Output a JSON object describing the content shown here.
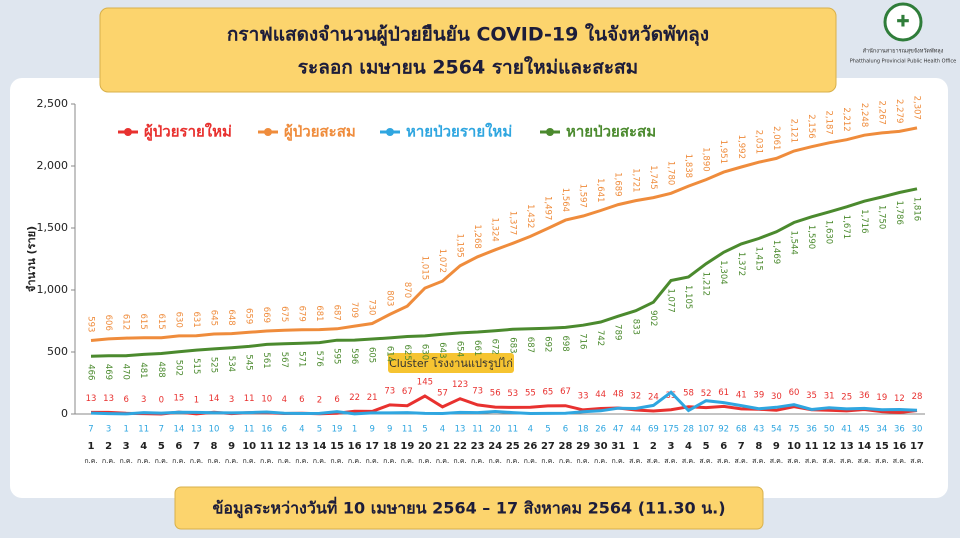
{
  "organization": {
    "name_th": "สำนักงานสาธารณสุขจังหวัดพัทลุง",
    "name_en": "Phatthalung Provincial Public Health Office"
  },
  "chart_data": {
    "type": "line",
    "title": [
      "กราฟแสดงจำนวนผู้ป่วยยืนยัน COVID-19 ในจังหวัดพัทลุง",
      "ระลอก เมษายน 2564 รายใหม่และสะสม"
    ],
    "y_label": "จำนวน (ราย)",
    "annotation": "Cluster โรงงานแปรรูปไก่",
    "note": "ข้อมูลระหว่างวันที่ 10 เมษายน 2564 – 17 สิงหาคม 2564 (11.30 น.)",
    "categories": [
      {
        "day": "1",
        "month": "ก.ค."
      },
      {
        "day": "2",
        "month": "ก.ค."
      },
      {
        "day": "3",
        "month": "ก.ค."
      },
      {
        "day": "4",
        "month": "ก.ค."
      },
      {
        "day": "5",
        "month": "ก.ค."
      },
      {
        "day": "6",
        "month": "ก.ค."
      },
      {
        "day": "7",
        "month": "ก.ค."
      },
      {
        "day": "8",
        "month": "ก.ค."
      },
      {
        "day": "9",
        "month": "ก.ค."
      },
      {
        "day": "10",
        "month": "ก.ค."
      },
      {
        "day": "11",
        "month": "ก.ค."
      },
      {
        "day": "12",
        "month": "ก.ค."
      },
      {
        "day": "13",
        "month": "ก.ค."
      },
      {
        "day": "14",
        "month": "ก.ค."
      },
      {
        "day": "15",
        "month": "ก.ค."
      },
      {
        "day": "16",
        "month": "ก.ค."
      },
      {
        "day": "17",
        "month": "ก.ค."
      },
      {
        "day": "18",
        "month": "ก.ค."
      },
      {
        "day": "19",
        "month": "ก.ค."
      },
      {
        "day": "20",
        "month": "ก.ค."
      },
      {
        "day": "21",
        "month": "ก.ค."
      },
      {
        "day": "22",
        "month": "ก.ค."
      },
      {
        "day": "23",
        "month": "ก.ค."
      },
      {
        "day": "24",
        "month": "ก.ค."
      },
      {
        "day": "25",
        "month": "ก.ค."
      },
      {
        "day": "26",
        "month": "ก.ค."
      },
      {
        "day": "27",
        "month": "ก.ค."
      },
      {
        "day": "28",
        "month": "ก.ค."
      },
      {
        "day": "29",
        "month": "ก.ค."
      },
      {
        "day": "30",
        "month": "ก.ค."
      },
      {
        "day": "31",
        "month": "ก.ค."
      },
      {
        "day": "1",
        "month": "ส.ค."
      },
      {
        "day": "2",
        "month": "ส.ค."
      },
      {
        "day": "3",
        "month": "ส.ค."
      },
      {
        "day": "4",
        "month": "ส.ค."
      },
      {
        "day": "5",
        "month": "ส.ค."
      },
      {
        "day": "6",
        "month": "ส.ค."
      },
      {
        "day": "7",
        "month": "ส.ค."
      },
      {
        "day": "8",
        "month": "ส.ค."
      },
      {
        "day": "9",
        "month": "ส.ค."
      },
      {
        "day": "10",
        "month": "ส.ค."
      },
      {
        "day": "11",
        "month": "ส.ค."
      },
      {
        "day": "12",
        "month": "ส.ค."
      },
      {
        "day": "13",
        "month": "ส.ค."
      },
      {
        "day": "14",
        "month": "ส.ค."
      },
      {
        "day": "15",
        "month": "ส.ค."
      },
      {
        "day": "16",
        "month": "ส.ค."
      },
      {
        "day": "17",
        "month": "ส.ค."
      }
    ],
    "ylim": [
      0,
      2500
    ],
    "yticks": [
      0,
      500,
      {
        "value": 1000,
        "label": "1,000"
      },
      {
        "value": 1500,
        "label": "1,500"
      },
      {
        "value": 2000,
        "label": "2,000"
      },
      {
        "value": 2500,
        "label": "2,500"
      }
    ],
    "series": [
      {
        "name": "ผู้ป่วยรายใหม่",
        "color": "#e8312f",
        "label_pos": "above",
        "values": [
          13,
          13,
          6,
          3,
          0,
          15,
          1,
          14,
          3,
          11,
          10,
          4,
          6,
          2,
          6,
          22,
          21,
          73,
          67,
          145,
          57,
          123,
          73,
          56,
          53,
          55,
          65,
          67,
          33,
          44,
          48,
          32,
          24,
          35,
          58,
          52,
          61,
          41,
          39,
          30,
          60,
          35,
          31,
          25,
          36,
          19,
          12,
          28
        ]
      },
      {
        "name": "ผู้ป่วยสะสม",
        "color": "#ef8c3c",
        "label_pos": "above-rotated",
        "values": [
          593,
          606,
          612,
          615,
          615,
          630,
          631,
          645,
          648,
          659,
          669,
          675,
          679,
          681,
          687,
          709,
          730,
          803,
          870,
          1015,
          1072,
          1195,
          1268,
          1324,
          1377,
          1432,
          1497,
          1564,
          1597,
          1641,
          1689,
          1721,
          1745,
          1780,
          1838,
          1890,
          1951,
          1992,
          2031,
          2061,
          2121,
          2156,
          2187,
          2212,
          2248,
          2267,
          2279,
          2307
        ],
        "value_labels": [
          "593",
          "606",
          "612",
          "615",
          "615",
          "630",
          "631",
          "645",
          "648",
          "659",
          "669",
          "675",
          "679",
          "681",
          "687",
          "709",
          "730",
          "803",
          "870",
          "1,015",
          "1,072",
          "1,195",
          "1,268",
          "1,324",
          "1,377",
          "1,432",
          "1,497",
          "1,564",
          "1,597",
          "1,641",
          "1,689",
          "1,721",
          "1,745",
          "1,780",
          "1,838",
          "1,890",
          "1,951",
          "1,992",
          "2,031",
          "2,061",
          "2,121",
          "2,156",
          "2,187",
          "2,212",
          "2,248",
          "2,267",
          "2,279",
          "2,307"
        ]
      },
      {
        "name": "หายป่วยรายใหม่",
        "color": "#2fa6e0",
        "label_pos": "bottom",
        "values": [
          7,
          3,
          1,
          11,
          7,
          14,
          13,
          10,
          9,
          11,
          16,
          6,
          4,
          5,
          19,
          1,
          9,
          9,
          11,
          5,
          4,
          13,
          11,
          20,
          11,
          4,
          5,
          6,
          18,
          26,
          47,
          44,
          69,
          175,
          28,
          107,
          92,
          68,
          43,
          54,
          75,
          36,
          50,
          41,
          45,
          34,
          36,
          30
        ]
      },
      {
        "name": "หายป่วยสะสม",
        "color": "#4b8a2e",
        "label_pos": "below-rotated",
        "values": [
          466,
          469,
          470,
          481,
          488,
          502,
          515,
          525,
          534,
          545,
          561,
          567,
          571,
          576,
          595,
          596,
          605,
          614,
          625,
          630,
          643,
          654,
          661,
          672,
          683,
          687,
          692,
          698,
          716,
          742,
          789,
          833,
          902,
          1077,
          1105,
          1212,
          1304,
          1372,
          1415,
          1469,
          1544,
          1590,
          1630,
          1671,
          1716,
          1750,
          1786,
          1816
        ],
        "value_labels": [
          "466",
          "469",
          "470",
          "481",
          "488",
          "502",
          "515",
          "525",
          "534",
          "545",
          "561",
          "567",
          "571",
          "576",
          "595",
          "596",
          "605",
          "614",
          "625",
          "630",
          "643",
          "654",
          "661",
          "672",
          "683",
          "687",
          "692",
          "698",
          "716",
          "742",
          "789",
          "833",
          "902",
          "1,077",
          "1,105",
          "1,212",
          "1,304",
          "1,372",
          "1,415",
          "1,469",
          "1,544",
          "1,590",
          "1,630",
          "1,671",
          "1,716",
          "1,750",
          "1,786",
          "1,816"
        ]
      }
    ]
  }
}
